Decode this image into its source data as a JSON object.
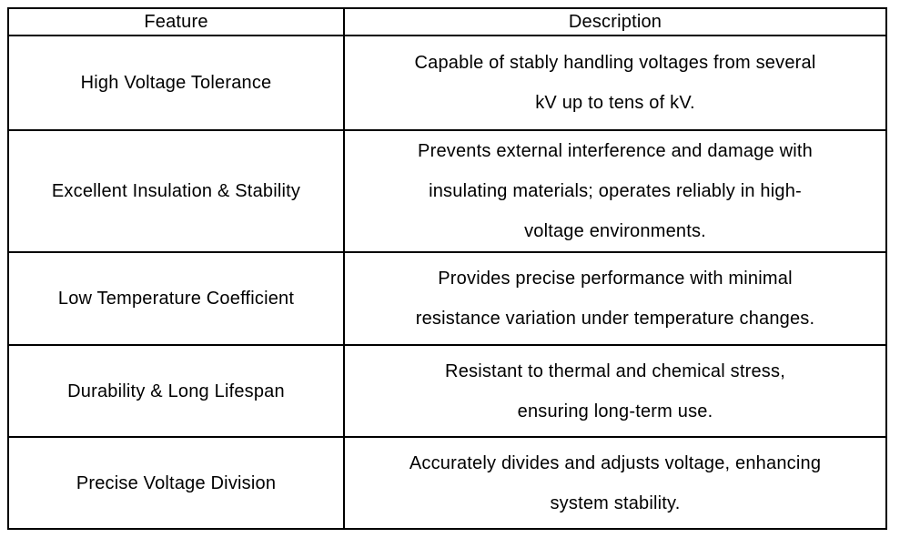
{
  "table": {
    "headers": {
      "feature": "Feature",
      "description": "Description"
    },
    "rows": [
      {
        "feature": "High Voltage Tolerance",
        "description_lines": [
          "Capable of stably handling voltages from several",
          "kV up to tens of kV."
        ]
      },
      {
        "feature": "Excellent Insulation & Stability",
        "description_lines": [
          "Prevents external interference and damage with",
          "insulating materials; operates reliably in high-",
          "voltage environments."
        ]
      },
      {
        "feature": "Low Temperature Coefficient",
        "description_lines": [
          "Provides precise performance with minimal",
          "resistance variation under temperature changes."
        ]
      },
      {
        "feature": "Durability & Long Lifespan",
        "description_lines": [
          "Resistant to thermal and chemical stress,",
          "ensuring long-term use."
        ]
      },
      {
        "feature": "Precise Voltage Division",
        "description_lines": [
          "Accurately divides and adjusts voltage, enhancing",
          "system stability."
        ]
      }
    ],
    "colors": {
      "border": "#000000",
      "text": "#000000",
      "background": "#ffffff"
    }
  }
}
